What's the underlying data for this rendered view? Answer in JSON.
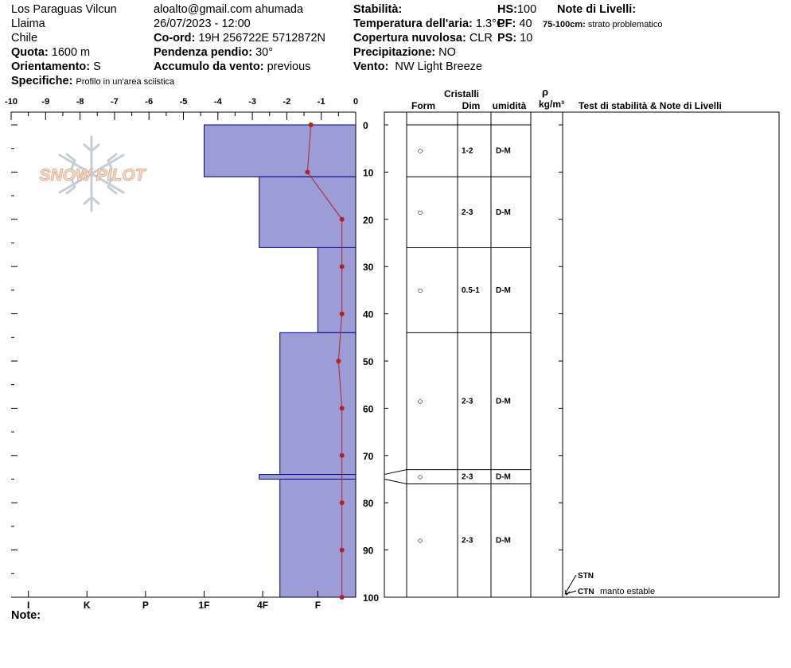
{
  "header": {
    "location": "Los Paraguas Vilcun",
    "region": "Llaima",
    "country": "Chile",
    "elevation_label": "Quota:",
    "elevation_value": "1600 m",
    "aspect_label": "Orientamento:",
    "aspect_value": "S",
    "specifics_label": "Specifiche:",
    "specifics_value": "Profilo in un'area sciistica",
    "observer": "aloalto@gmail.com ahumada",
    "datetime": "26/07/2023 - 12:00",
    "coord_label": "Co-ord:",
    "coord_value": "19H 256722E 5712872N",
    "slope_label": "Pendenza pendio:",
    "slope_value": "30°",
    "wind_loading_label": "Accumulo da vento:",
    "wind_loading_value": "previous",
    "stability_label": "Stabilità:",
    "air_temp_label": "Temperatura dell'aria:",
    "air_temp_value": "1.3°C",
    "sky_label": "Copertura nuvolosa:",
    "sky_value": "CLR",
    "precip_label": "Precipitazione:",
    "precip_value": "NO",
    "wind_label": "Vento:",
    "wind_value": "NW Light Breeze",
    "hs_label": "HS:",
    "hs_value": "100",
    "pf_label": "PF:",
    "pf_value": "40",
    "ps_label": "PS:",
    "ps_value": "10",
    "layer_notes_title": "Note di Livelli:",
    "layer_note_range": "75-100cm:",
    "layer_note_text": "strato problematico"
  },
  "logo_text": "SNOW PILOT",
  "table_headers": {
    "crystals": "Cristalli",
    "form": "Form",
    "dim": "Dim",
    "moisture": "umidità",
    "density_symbol": "ρ",
    "density_unit": "kg/m³",
    "tests": "Test di stabilità & Note di Livelli"
  },
  "notes_label": "Note:",
  "colors": {
    "hardness_fill": "#9c9cd6",
    "hardness_stroke": "#00008b",
    "temp_line": "#b22222"
  },
  "chart_data": {
    "type": "snow_profile",
    "temperature_axis": {
      "ticks": [
        -10,
        -9,
        -8,
        -7,
        -6,
        -5,
        -4,
        -3,
        -2,
        -1,
        0
      ],
      "range": [
        -10,
        0
      ]
    },
    "depth_axis": {
      "ticks": [
        0,
        10,
        20,
        30,
        40,
        50,
        60,
        70,
        80,
        90,
        100
      ],
      "range": [
        0,
        100
      ]
    },
    "hardness_axis": {
      "labels": [
        "I",
        "K",
        "P",
        "1F",
        "4F",
        "F"
      ],
      "temp_equivalent": [
        -9.5,
        -7.8,
        -6.1,
        -4.4,
        -2.7,
        -1.1
      ]
    },
    "hardness_layers": [
      {
        "top": 0,
        "bottom": 11,
        "temp_extent": -4.4
      },
      {
        "top": 11,
        "bottom": 26,
        "temp_extent": -2.8
      },
      {
        "top": 26,
        "bottom": 44,
        "temp_extent": -1.1
      },
      {
        "top": 44,
        "bottom": 74,
        "temp_extent": -2.2
      },
      {
        "top": 74,
        "bottom": 75,
        "temp_extent": -2.8
      },
      {
        "top": 75,
        "bottom": 100,
        "temp_extent": -2.2
      }
    ],
    "temperature_profile": [
      {
        "depth": 0,
        "temp": -1.3
      },
      {
        "depth": 10,
        "temp": -1.4
      },
      {
        "depth": 20,
        "temp": -0.4
      },
      {
        "depth": 30,
        "temp": -0.4
      },
      {
        "depth": 40,
        "temp": -0.4
      },
      {
        "depth": 50,
        "temp": -0.5
      },
      {
        "depth": 60,
        "temp": -0.4
      },
      {
        "depth": 70,
        "temp": -0.4
      },
      {
        "depth": 80,
        "temp": -0.4
      },
      {
        "depth": 90,
        "temp": -0.4
      },
      {
        "depth": 100,
        "temp": -0.4
      }
    ],
    "crystal_layers": [
      {
        "top": 0,
        "bottom": 11,
        "form": "○",
        "dim": "1-2",
        "moisture": "D-M"
      },
      {
        "top": 11,
        "bottom": 26,
        "form": "○",
        "dim": "2-3",
        "moisture": "D-M"
      },
      {
        "top": 26,
        "bottom": 44,
        "form": "○",
        "dim": "0.5-1",
        "moisture": "D-M"
      },
      {
        "top": 44,
        "bottom": 73,
        "form": "○",
        "dim": "2-3",
        "moisture": "D-M"
      },
      {
        "top": 73,
        "bottom": 76,
        "form": "○",
        "dim": "2-3",
        "moisture": "D-M"
      },
      {
        "top": 76,
        "bottom": 100,
        "form": "○",
        "dim": "2-3",
        "moisture": "D-M"
      }
    ],
    "stability_tests": [
      {
        "depth": 100,
        "code": "STN",
        "note": ""
      },
      {
        "depth": 100,
        "code": "CTN",
        "note": "manto estable"
      }
    ]
  }
}
